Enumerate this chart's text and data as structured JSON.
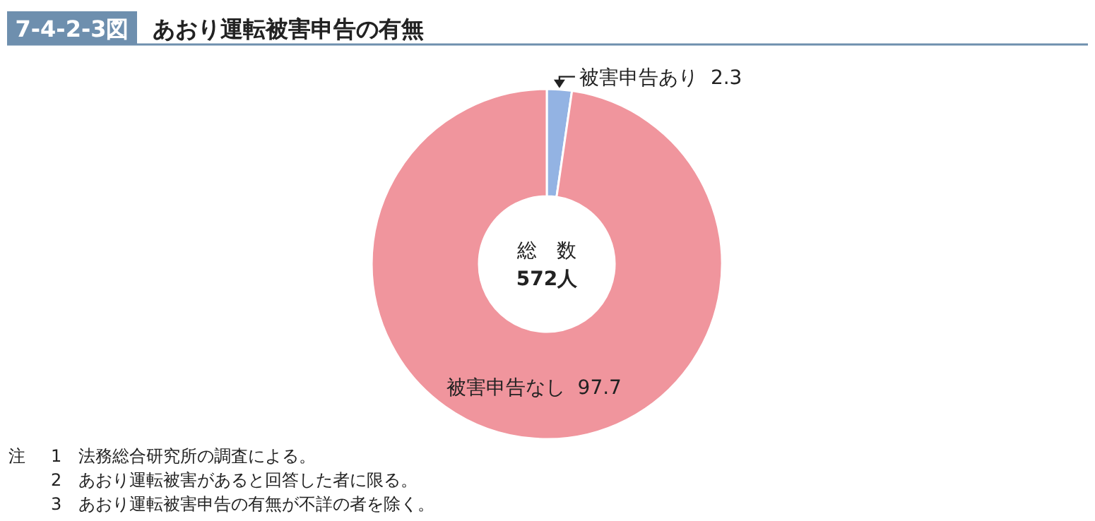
{
  "chart_data": {
    "type": "donut",
    "title": "あおり運転被害申告の有無",
    "subtitle": "7-4-2-3図",
    "categories": [
      "被害申告あり",
      "被害申告なし"
    ],
    "values": [
      2.3,
      97.7
    ],
    "colors": [
      "#93b3e3",
      "#f0959d"
    ],
    "data_labels": true,
    "annotations": [
      "総　数",
      "572人",
      "注",
      "1　法務総合研究所の調査による。",
      "2　あおり運転被害があると回答した者に限る。",
      "3　あおり運転被害申告の有無が不詳の者を除く。"
    ]
  }
}
